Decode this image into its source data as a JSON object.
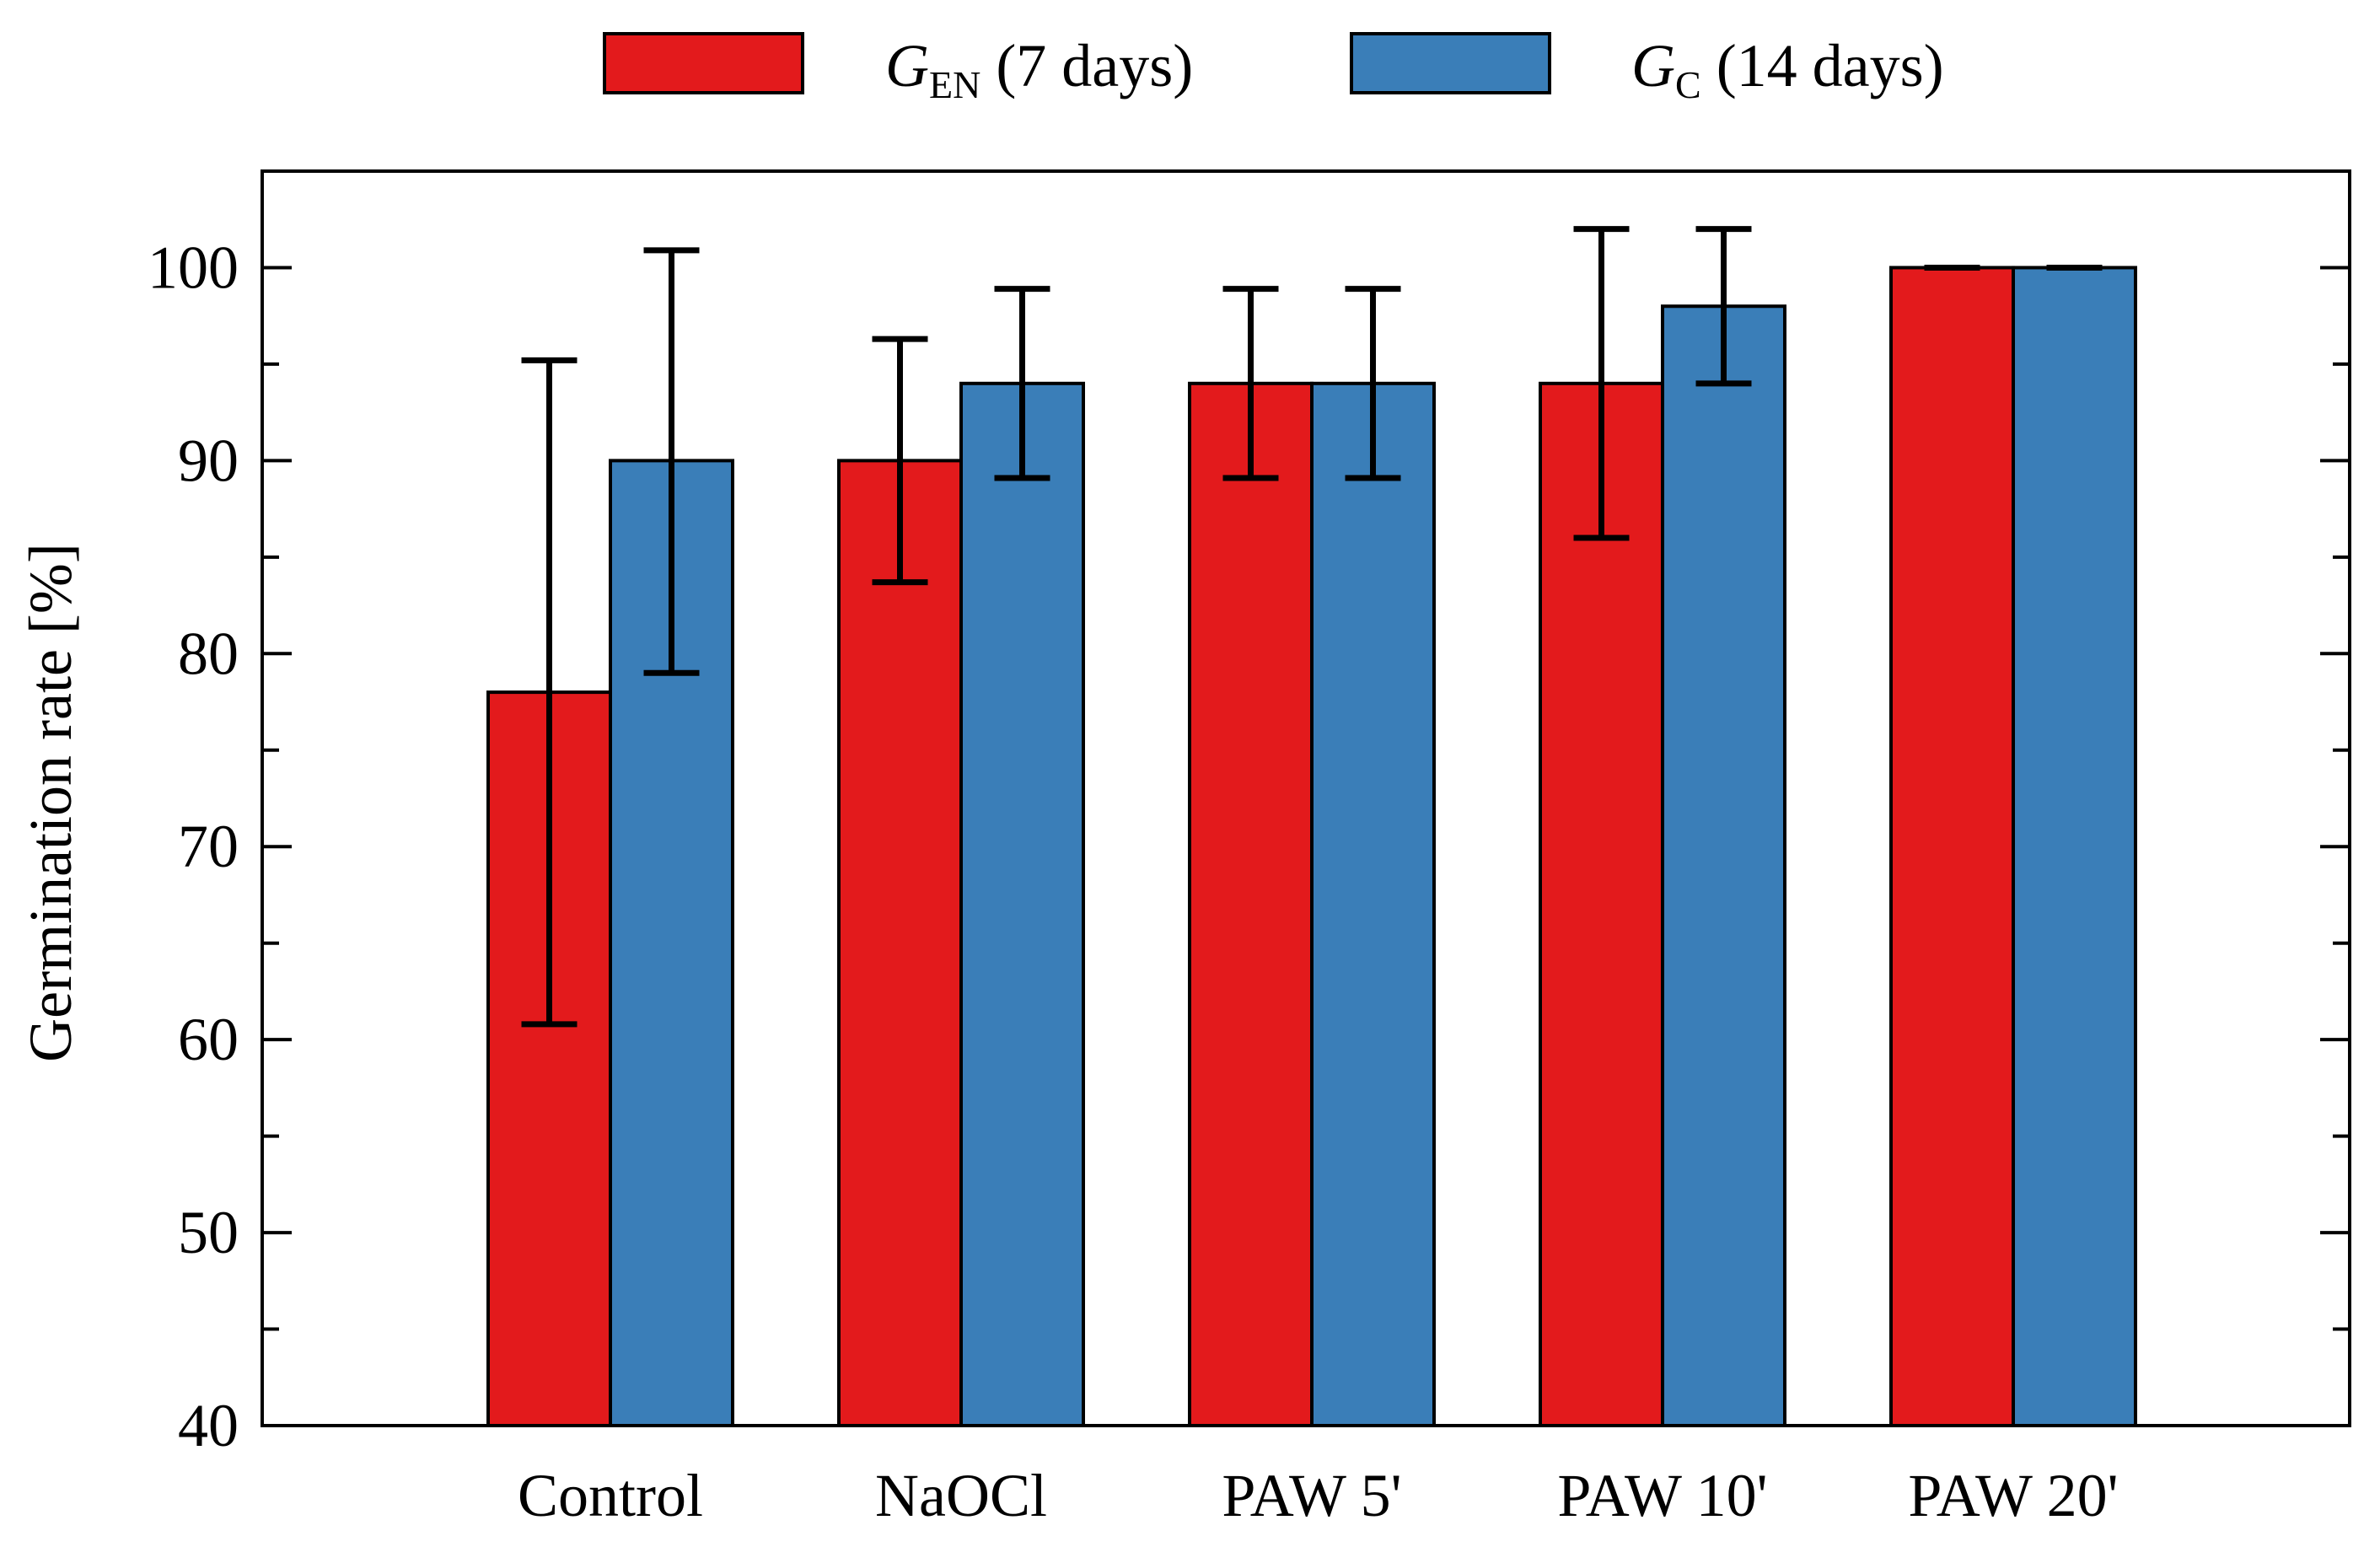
{
  "chart_data": {
    "type": "bar",
    "title": "",
    "xlabel": "",
    "ylabel": "Germination rate [%]",
    "ylim": [
      40,
      105
    ],
    "yticks": [
      40,
      50,
      60,
      70,
      80,
      90,
      100
    ],
    "grid": false,
    "legend_position": "top-center",
    "categories": [
      "Control",
      "NaOCl",
      "PAW 5'",
      "PAW 10'",
      "PAW 20'"
    ],
    "series": [
      {
        "name": "G_EN (7 days)",
        "label_main": "G",
        "label_sub": "EN",
        "label_rest": " (7 days)",
        "color": "#e31a1c",
        "values": [
          78,
          90,
          94,
          94,
          100
        ],
        "error_low": [
          60.8,
          83.7,
          89.1,
          86,
          100
        ],
        "error_high": [
          95.2,
          96.3,
          98.9,
          102,
          100
        ]
      },
      {
        "name": "G_C (14 days)",
        "label_main": "G",
        "label_sub": "C",
        "label_rest": " (14 days)",
        "color": "#3a7eb8",
        "values": [
          90,
          94,
          94,
          98,
          100
        ],
        "error_low": [
          79,
          89.1,
          89.1,
          94,
          100
        ],
        "error_high": [
          100.9,
          98.9,
          98.9,
          102,
          100
        ]
      }
    ]
  }
}
